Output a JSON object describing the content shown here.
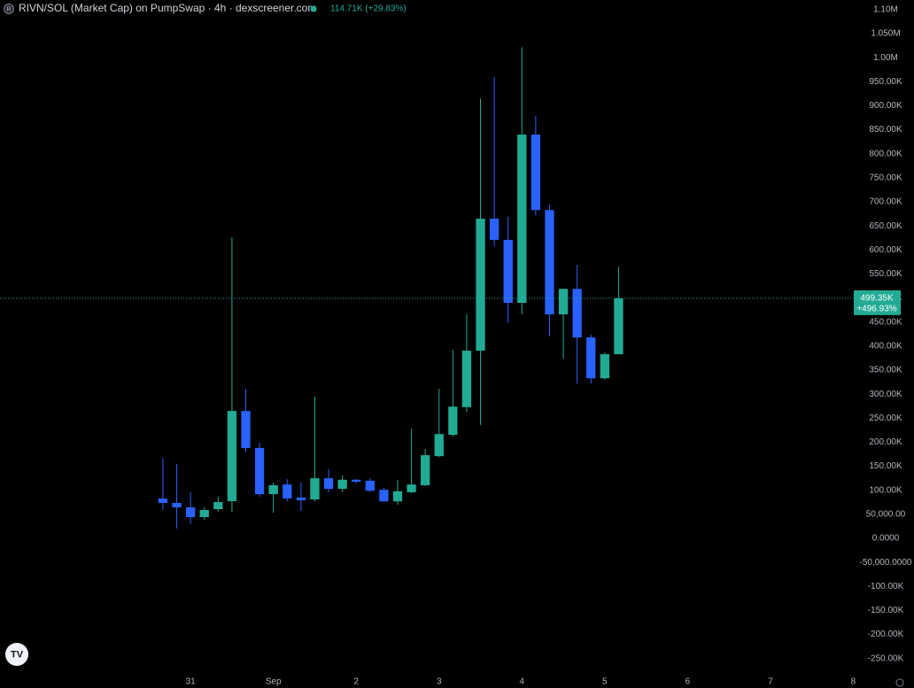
{
  "chart_data": {
    "type": "candlestick",
    "title": "RIVN/SOL (Market Cap) on PumpSwap · 4h · dexscreener.com",
    "header_value": "114.71K (+29.83%)",
    "up_color": "#22ab94",
    "down_color": "#2962ff",
    "open": [
      82900,
      73700,
      64500,
      44200,
      60800,
      77400,
      265000,
      188000,
      92000,
      112000,
      85000,
      81000,
      125000,
      103000,
      122000,
      120000,
      101000,
      77000,
      96000,
      110500,
      171000,
      215500,
      273000,
      390500,
      665000,
      621000,
      490000,
      840000,
      683000,
      466000,
      519000,
      418000,
      333000,
      383000
    ],
    "high": [
      167600,
      154700,
      95800,
      64500,
      86600,
      626000,
      311000,
      199000,
      116000,
      123000,
      116000,
      295000,
      144000,
      131000,
      123000,
      125000,
      105000,
      122000,
      228000,
      186000,
      311000,
      392000,
      466000,
      915000,
      960000,
      669000,
      1022000,
      879000,
      694000,
      519000,
      569000,
      424000,
      387000,
      565000
    ],
    "low": [
      58900,
      20300,
      29500,
      38700,
      55300,
      55300,
      180000,
      86600,
      53400,
      77000,
      57000,
      77000,
      96000,
      96000,
      114000,
      96000,
      75500,
      70000,
      94000,
      109000,
      169000,
      212000,
      263000,
      236000,
      608000,
      448000,
      466000,
      672000,
      420000,
      374000,
      322000,
      322000,
      330000,
      383000
    ],
    "close": [
      73700,
      64500,
      44200,
      58900,
      75500,
      265000,
      188000,
      92000,
      110500,
      83000,
      79000,
      125000,
      103000,
      122000,
      118000,
      99000,
      77000,
      98000,
      112000,
      173000,
      217000,
      274000,
      390500,
      665000,
      621000,
      490000,
      840000,
      683000,
      466000,
      519000,
      418000,
      333000,
      383000,
      499350
    ],
    "last_value": 499350,
    "last_value_label": "499.35K",
    "last_change_label": "+496.93%",
    "xlim": [
      -11.8,
      50.1
    ],
    "xticks": [
      {
        "value": 2,
        "label": "31"
      },
      {
        "value": 8,
        "label": "Sep"
      },
      {
        "value": 14,
        "label": "2"
      },
      {
        "value": 20,
        "label": "3"
      },
      {
        "value": 26,
        "label": "4"
      },
      {
        "value": 32,
        "label": "5"
      },
      {
        "value": 38,
        "label": "6"
      },
      {
        "value": 44,
        "label": "7"
      },
      {
        "value": 50,
        "label": "8"
      }
    ],
    "ylim": [
      -280000,
      1120000
    ],
    "yticks": [
      {
        "value": 1100000,
        "label": "1.10M"
      },
      {
        "value": 1050000,
        "label": "1.050M"
      },
      {
        "value": 1000000,
        "label": "1.00M"
      },
      {
        "value": 950000,
        "label": "950.00K"
      },
      {
        "value": 900000,
        "label": "900.00K"
      },
      {
        "value": 850000,
        "label": "850.00K"
      },
      {
        "value": 800000,
        "label": "800.00K"
      },
      {
        "value": 750000,
        "label": "750.00K"
      },
      {
        "value": 700000,
        "label": "700.00K"
      },
      {
        "value": 650000,
        "label": "650.00K"
      },
      {
        "value": 600000,
        "label": "600.00K"
      },
      {
        "value": 550000,
        "label": "550.00K"
      },
      {
        "value": 500000,
        "label": "500.00K"
      },
      {
        "value": 450000,
        "label": "450.00K"
      },
      {
        "value": 400000,
        "label": "400.00K"
      },
      {
        "value": 350000,
        "label": "350.00K"
      },
      {
        "value": 300000,
        "label": "300.00K"
      },
      {
        "value": 250000,
        "label": "250.00K"
      },
      {
        "value": 200000,
        "label": "200.00K"
      },
      {
        "value": 150000,
        "label": "150.00K"
      },
      {
        "value": 100000,
        "label": "100.00K"
      },
      {
        "value": 50000,
        "label": "50,000.00"
      },
      {
        "value": 0,
        "label": "0.0000"
      },
      {
        "value": -50000,
        "label": "-50,000.0000"
      },
      {
        "value": -100000,
        "label": "-100.00K"
      },
      {
        "value": -150000,
        "label": "-150.00K"
      },
      {
        "value": -200000,
        "label": "-200.00K"
      },
      {
        "value": -250000,
        "label": "-250.00K"
      }
    ]
  }
}
